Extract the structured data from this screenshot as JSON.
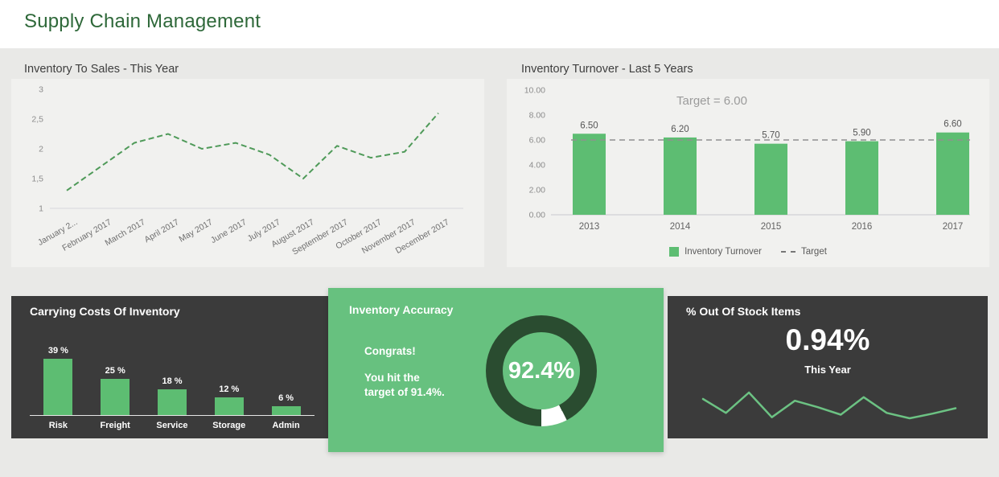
{
  "page": {
    "title": "Supply Chain Management"
  },
  "colors": {
    "title_green": "#2e6839",
    "bar_green": "#5dbd72",
    "line_green": "#4f9a59",
    "spark_green": "#6cc283",
    "dark_panel": "#3b3b3b",
    "green_panel": "#67c17f",
    "ring_dark": "#2a4c30",
    "ring_gap": "#ffffff",
    "card_bg": "#f1f1ef",
    "axis_text": "#8c8c8c",
    "target_line": "#909090"
  },
  "chart_data": [
    {
      "type": "line",
      "title": "Inventory To Sales - This Year",
      "x": [
        "January 2...",
        "February 2017",
        "March 2017",
        "April 2017",
        "May 2017",
        "June 2017",
        "July 2017",
        "August 2017",
        "September 2017",
        "October 2017",
        "November 2017",
        "December 2017"
      ],
      "values": [
        1.3,
        1.7,
        2.1,
        2.25,
        2.0,
        2.1,
        1.9,
        1.5,
        2.05,
        1.85,
        1.95,
        2.6
      ],
      "ylim": [
        1,
        3
      ],
      "yticks": [
        {
          "v": 3,
          "label": "3"
        },
        {
          "v": 2.5,
          "label": "2,5"
        },
        {
          "v": 2,
          "label": "2"
        },
        {
          "v": 1.5,
          "label": "1,5"
        },
        {
          "v": 1,
          "label": "1"
        }
      ],
      "line_style": "dashed",
      "grid": "baseline-only"
    },
    {
      "type": "bar",
      "title": "Inventory Turnover - Last 5 Years",
      "categories": [
        "2013",
        "2014",
        "2015",
        "2016",
        "2017"
      ],
      "values": [
        6.5,
        6.2,
        5.7,
        5.9,
        6.6
      ],
      "value_labels": [
        "6.50",
        "6.20",
        "5.70",
        "5.90",
        "6.60"
      ],
      "target": 6.0,
      "annotation": "Target = 6.00",
      "ylim": [
        0,
        10
      ],
      "yticks": [
        {
          "v": 10,
          "label": "10.00"
        },
        {
          "v": 8,
          "label": "8.00"
        },
        {
          "v": 6,
          "label": "6.00"
        },
        {
          "v": 4,
          "label": "4.00"
        },
        {
          "v": 2,
          "label": "2.00"
        },
        {
          "v": 0,
          "label": "0.00"
        }
      ],
      "legend": [
        {
          "swatch": "bar",
          "label": "Inventory Turnover"
        },
        {
          "swatch": "dash",
          "label": "Target"
        }
      ]
    },
    {
      "type": "bar",
      "title": "Carrying Costs Of Inventory",
      "categories": [
        "Risk",
        "Freight",
        "Service",
        "Storage",
        "Admin"
      ],
      "values": [
        39,
        25,
        18,
        12,
        6
      ],
      "value_labels": [
        "39 %",
        "25 %",
        "18 %",
        "12 %",
        "6 %"
      ]
    },
    {
      "type": "gauge",
      "title": "Inventory Accuracy",
      "value": 92.4,
      "value_label": "92.4%",
      "message_heading": "Congrats!",
      "message_line1": "You hit the",
      "message_line2_prefix": "target of ",
      "message_line2_value": "91.4%."
    },
    {
      "type": "line",
      "title": "% Out Of Stock Items",
      "big_value": "0.94%",
      "subtitle": "This Year",
      "values": [
        0.75,
        0.21,
        1.0,
        0.04,
        0.68,
        0.43,
        0.14,
        0.82,
        0.21,
        0.0,
        0.18,
        0.39
      ]
    }
  ]
}
